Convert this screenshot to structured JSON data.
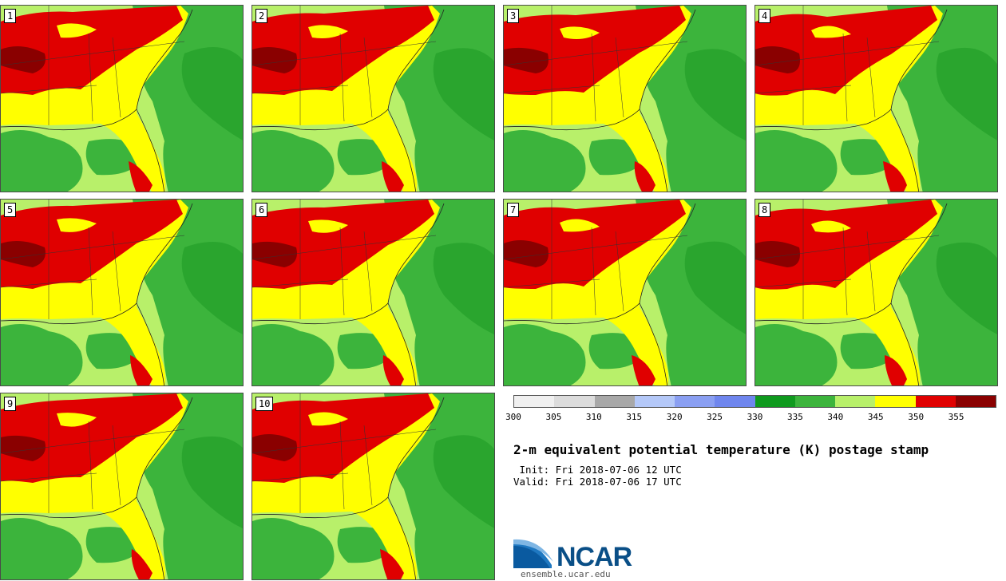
{
  "panels": [
    {
      "label": "1"
    },
    {
      "label": "2"
    },
    {
      "label": "3"
    },
    {
      "label": "4"
    },
    {
      "label": "5"
    },
    {
      "label": "6"
    },
    {
      "label": "7"
    },
    {
      "label": "8"
    },
    {
      "label": "9"
    },
    {
      "label": "10"
    }
  ],
  "colorbar": {
    "ticks": [
      "300",
      "305",
      "310",
      "315",
      "320",
      "325",
      "330",
      "335",
      "340",
      "345",
      "350",
      "355"
    ],
    "colors": [
      "#f0f0f0",
      "#dcdcdc",
      "#a8a8a8",
      "#b4c8f8",
      "#8a9ff2",
      "#6f86ee",
      "#0f9a1e",
      "#3cb43c",
      "#b8f06a",
      "#ffff00",
      "#e00000",
      "#8a0000"
    ]
  },
  "title": "2-m equivalent potential temperature (K) postage stamp",
  "init": " Init: Fri 2018-07-06 12 UTC",
  "valid": "Valid: Fri 2018-07-06 17 UTC",
  "logo": {
    "text": "NCAR",
    "url": "ensemble.ucar.edu"
  }
}
